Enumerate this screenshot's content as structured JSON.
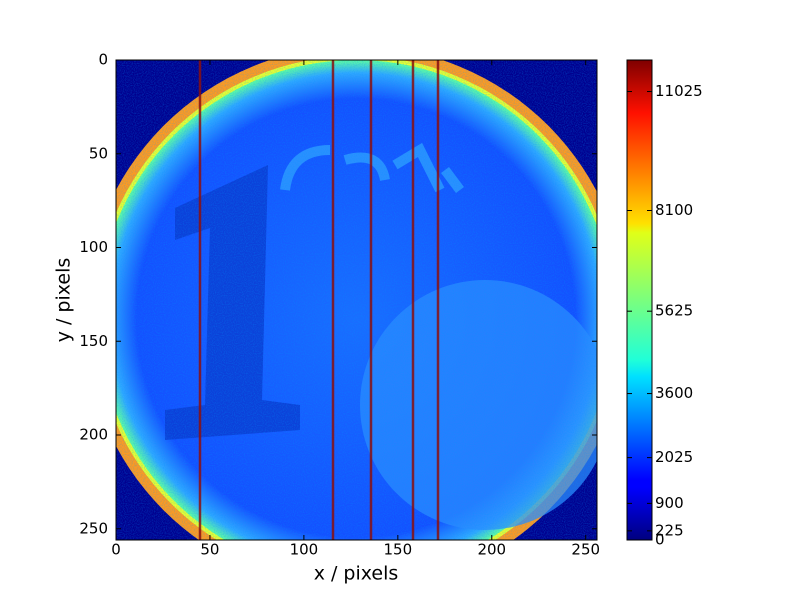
{
  "chart_data": {
    "type": "image",
    "xlabel": "x / pixels",
    "ylabel": "y / pixels",
    "xlim": [
      0,
      256
    ],
    "ylim": [
      256,
      0
    ],
    "xticks": [
      0,
      50,
      100,
      150,
      200,
      250
    ],
    "yticks": [
      0,
      50,
      100,
      150,
      200,
      250
    ],
    "colormap": "jet",
    "clim": [
      0,
      11800
    ],
    "cticks": [
      0,
      225,
      900,
      2025,
      3600,
      5625,
      8100,
      11025
    ]
  }
}
